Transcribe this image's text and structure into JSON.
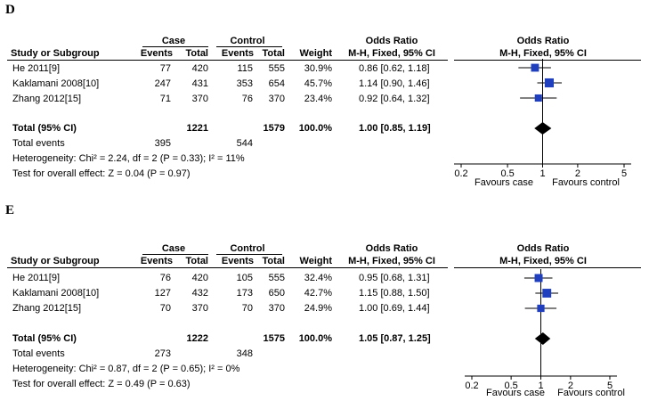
{
  "chart_data": [
    {
      "type": "forest",
      "panel": "D",
      "headers": {
        "study": "Study or Subgroup",
        "case": "Case",
        "control": "Control",
        "events": "Events",
        "total": "Total",
        "weight": "Weight",
        "or_group": "Odds Ratio",
        "or_method": "M-H, Fixed, 95% CI",
        "plot_group": "Odds Ratio",
        "plot_method": "M-H, Fixed, 95% CI"
      },
      "studies": [
        {
          "name": "He 2011[9]",
          "case_events": "77",
          "case_total": "420",
          "ctrl_events": "115",
          "ctrl_total": "555",
          "weight": "30.9%",
          "ci_text": "0.86 [0.62, 1.18]",
          "or": 0.86,
          "low": 0.62,
          "high": 1.18
        },
        {
          "name": "Kaklamani 2008[10]",
          "case_events": "247",
          "case_total": "431",
          "ctrl_events": "353",
          "ctrl_total": "654",
          "weight": "45.7%",
          "ci_text": "1.14 [0.90, 1.46]",
          "or": 1.14,
          "low": 0.9,
          "high": 1.46
        },
        {
          "name": "Zhang 2012[15]",
          "case_events": "71",
          "case_total": "370",
          "ctrl_events": "76",
          "ctrl_total": "370",
          "weight": "23.4%",
          "ci_text": "0.92 [0.64, 1.32]",
          "or": 0.92,
          "low": 0.64,
          "high": 1.32
        }
      ],
      "total": {
        "label": "Total (95% CI)",
        "case_total": "1221",
        "ctrl_total": "1579",
        "weight": "100.0%",
        "ci_text": "1.00 [0.85, 1.19]",
        "or": 1.0,
        "low": 0.85,
        "high": 1.19
      },
      "total_events": {
        "label": "Total events",
        "case": "395",
        "control": "544"
      },
      "heterogeneity": "Heterogeneity: Chi² = 2.24, df = 2 (P = 0.33); I² = 11%",
      "overall_effect": "Test for overall effect: Z = 0.04 (P = 0.97)",
      "axis": {
        "scale": "log",
        "ticks": [
          0.2,
          0.5,
          1,
          2,
          5
        ],
        "tick_labels": [
          "0.2",
          "0.5",
          "1",
          "2",
          "5"
        ],
        "range": [
          0.2,
          5
        ]
      },
      "favours_left": "Favours case",
      "favours_right": "Favours control"
    },
    {
      "type": "forest",
      "panel": "E",
      "headers": {
        "study": "Study or Subgroup",
        "case": "Case",
        "control": "Control",
        "events": "Events",
        "total": "Total",
        "weight": "Weight",
        "or_group": "Odds Ratio",
        "or_method": "M-H, Fixed, 95% CI",
        "plot_group": "Odds Ratio",
        "plot_method": "M-H, Fixed, 95% CI"
      },
      "studies": [
        {
          "name": "He 2011[9]",
          "case_events": "76",
          "case_total": "420",
          "ctrl_events": "105",
          "ctrl_total": "555",
          "weight": "32.4%",
          "ci_text": "0.95 [0.68, 1.31]",
          "or": 0.95,
          "low": 0.68,
          "high": 1.31
        },
        {
          "name": "Kaklamani 2008[10]",
          "case_events": "127",
          "case_total": "432",
          "ctrl_events": "173",
          "ctrl_total": "650",
          "weight": "42.7%",
          "ci_text": "1.15 [0.88, 1.50]",
          "or": 1.15,
          "low": 0.88,
          "high": 1.5
        },
        {
          "name": "Zhang 2012[15]",
          "case_events": "70",
          "case_total": "370",
          "ctrl_events": "70",
          "ctrl_total": "370",
          "weight": "24.9%",
          "ci_text": "1.00 [0.69, 1.44]",
          "or": 1.0,
          "low": 0.69,
          "high": 1.44
        }
      ],
      "total": {
        "label": "Total (95% CI)",
        "case_total": "1222",
        "ctrl_total": "1575",
        "weight": "100.0%",
        "ci_text": "1.05 [0.87, 1.25]",
        "or": 1.05,
        "low": 0.87,
        "high": 1.25
      },
      "total_events": {
        "label": "Total events",
        "case": "273",
        "control": "348"
      },
      "heterogeneity": "Heterogeneity: Chi² = 0.87, df = 2 (P = 0.65); I² = 0%",
      "overall_effect": "Test for overall effect: Z = 0.49 (P = 0.63)",
      "axis": {
        "scale": "log",
        "ticks": [
          0.2,
          0.5,
          1,
          2,
          5
        ],
        "tick_labels": [
          "0.2",
          "0.5",
          "1",
          "2",
          "5"
        ],
        "range": [
          0.2,
          5
        ]
      },
      "favours_left": "Favours case",
      "favours_right": "Favours control"
    }
  ],
  "colors": {
    "marker": "#1f3fbf",
    "line": "#000000"
  }
}
